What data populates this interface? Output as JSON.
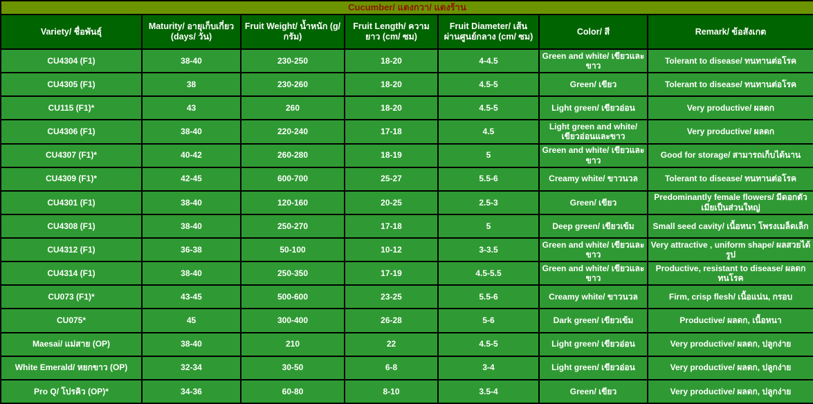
{
  "title": "Cucumber/ แตงกวา/ แตงร้าน",
  "colors": {
    "title_bg": "#6b9400",
    "title_text": "#8e1500",
    "header_bg": "#006400",
    "row_bg": "#2f9a33",
    "border": "#000000",
    "cell_text": "#ffffff"
  },
  "table": {
    "columns": [
      {
        "id": "variety",
        "label": "Variety/ ชื่อพันธุ์"
      },
      {
        "id": "maturity",
        "label": "Maturity/ อายุเก็บเกี่ยว (days/ วัน)"
      },
      {
        "id": "fruit-weight",
        "label": "Fruit Weight/ น้ำหนัก (g/ กรัม)"
      },
      {
        "id": "fruit-length",
        "label": "Fruit Length/ ความ ยาว (cm/ ซม)"
      },
      {
        "id": "fruit-diameter",
        "label": "Fruit Diameter/ เส้น ผ่านศูนย์กลาง (cm/ ซม)"
      },
      {
        "id": "color",
        "label": "Color/ สี"
      },
      {
        "id": "remark",
        "label": "Remark/ ข้อสังเกต"
      }
    ],
    "rows": [
      [
        "CU4304 (F1)",
        "38-40",
        "230-250",
        "18-20",
        "4-4.5",
        "Green and white/ เขียวและขาว",
        "Tolerant to disease/ ทนทานต่อโรค"
      ],
      [
        "CU4305 (F1)",
        "38",
        "230-260",
        "18-20",
        "4.5-5",
        "Green/ เขียว",
        "Tolerant to disease/ ทนทานต่อโรค"
      ],
      [
        "CU115 (F1)*",
        "43",
        "260",
        "18-20",
        "4.5-5",
        "Light green/ เขียวอ่อน",
        "Very productive/ ผลดก"
      ],
      [
        "CU4306 (F1)",
        "38-40",
        "220-240",
        "17-18",
        "4.5",
        "Light green and white/ เขียวอ่อนและขาว",
        "Very productive/ ผลดก"
      ],
      [
        "CU4307 (F1)*",
        "40-42",
        "260-280",
        "18-19",
        "5",
        "Green and white/ เขียวและขาว",
        "Good for storage/ สามารถเก็บได้นาน"
      ],
      [
        "CU4309 (F1)*",
        "42-45",
        "600-700",
        "25-27",
        "5.5-6",
        "Creamy white/ ขาวนวล",
        "Tolerant to disease/ ทนทานต่อโรค"
      ],
      [
        "CU4301 (F1)",
        "38-40",
        "120-160",
        "20-25",
        "2.5-3",
        "Green/ เขียว",
        "Predominantly female flowers/ มีดอกตัวเมียเป็นส่วนใหญ่"
      ],
      [
        "CU4308 (F1)",
        "38-40",
        "250-270",
        "17-18",
        "5",
        "Deep green/ เขียวเข้ม",
        "Small seed cavity/ เนื้อหนา โพรงเมล็ดเล็ก"
      ],
      [
        "CU4312 (F1)",
        "36-38",
        "50-100",
        "10-12",
        "3-3.5",
        "Green and white/ เขียวและขาว",
        "Very attractive , uniform shape/ ผลสวยได้รูป"
      ],
      [
        "CU4314 (F1)",
        "38-40",
        "250-350",
        "17-19",
        "4.5-5.5",
        "Green and white/ เขียวและขาว",
        "Productive, resistant to disease/ ผลดก ทนโรค"
      ],
      [
        "CU073 (F1)*",
        "43-45",
        "500-600",
        "23-25",
        "5.5-6",
        "Creamy white/ ขาวนวล",
        "Firm, crisp flesh/ เนื้อแน่น, กรอบ"
      ],
      [
        "CU075*",
        "45",
        "300-400",
        "26-28",
        "5-6",
        "Dark green/ เขียวเข้ม",
        "Productive/ ผลดก, เนื้อหนา"
      ],
      [
        "Maesai/ แม่สาย (OP)",
        "38-40",
        "210",
        "22",
        "4.5-5",
        "Light green/ เขียวอ่อน",
        "Very productive/ ผลดก, ปลูกง่าย"
      ],
      [
        "White Emerald/ หยกขาว (OP)",
        "32-34",
        "30-50",
        "6-8",
        "3-4",
        "Light green/ เขียวอ่อน",
        "Very productive/ ผลดก, ปลูกง่าย"
      ],
      [
        "Pro Q/ โปรคิว (OP)*",
        "34-36",
        "60-80",
        "8-10",
        "3.5-4",
        "Green/ เขียว",
        "Very productive/ ผลดก, ปลูกง่าย"
      ]
    ]
  }
}
